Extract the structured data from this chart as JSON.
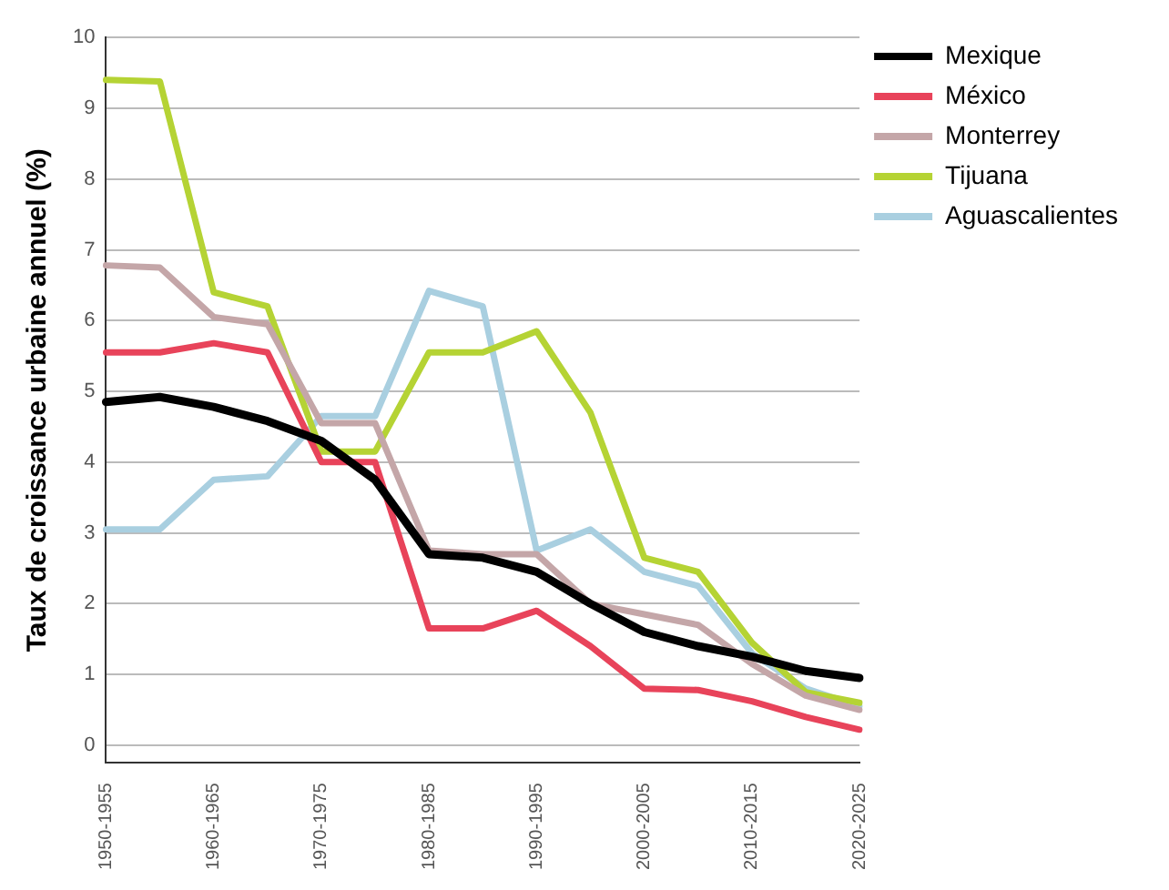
{
  "chart_data": {
    "type": "line",
    "ylabel": "Taux de croissance urbaine annuel (%)",
    "categories": [
      "1950-1955",
      null,
      "1960-1965",
      null,
      "1970-1975",
      null,
      "1980-1985",
      null,
      "1990-1995",
      null,
      "2000-2005",
      null,
      "2010-2015",
      null,
      "2020-2025"
    ],
    "series": [
      {
        "name": "Mexique",
        "color": "#000000",
        "values": [
          4.85,
          4.92,
          4.78,
          4.58,
          4.3,
          3.75,
          2.7,
          2.65,
          2.45,
          2.0,
          1.6,
          1.4,
          1.25,
          1.05,
          0.95
        ]
      },
      {
        "name": "México",
        "color": "#e8435a",
        "values": [
          5.55,
          5.55,
          5.68,
          5.55,
          4.0,
          4.0,
          1.65,
          1.65,
          1.9,
          1.4,
          0.8,
          0.78,
          0.62,
          0.4,
          0.22
        ]
      },
      {
        "name": "Monterrey",
        "color": "#c4a6a8",
        "values": [
          6.78,
          6.75,
          6.05,
          5.95,
          4.55,
          4.55,
          2.75,
          2.7,
          2.7,
          2.0,
          1.85,
          1.7,
          1.15,
          0.7,
          0.5
        ]
      },
      {
        "name": "Tijuana",
        "color": "#b5d334",
        "values": [
          9.4,
          9.38,
          6.4,
          6.2,
          4.15,
          4.15,
          5.55,
          5.55,
          5.85,
          4.7,
          2.65,
          2.45,
          1.45,
          0.75,
          0.6
        ]
      },
      {
        "name": "Aguascalientes",
        "color": "#a9cfe0",
        "values": [
          3.05,
          3.05,
          3.75,
          3.8,
          4.65,
          4.65,
          6.42,
          6.2,
          2.75,
          3.05,
          2.45,
          2.25,
          1.3,
          0.8,
          0.55
        ]
      }
    ],
    "ylim": [
      -0.25,
      10
    ],
    "yticks": [
      0,
      1,
      2,
      3,
      4,
      5,
      6,
      7,
      8,
      9,
      10
    ],
    "grid": "y",
    "legend": "top right",
    "marker": "none",
    "line_style": "solid"
  }
}
